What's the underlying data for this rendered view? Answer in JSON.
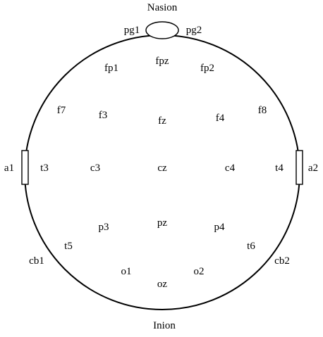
{
  "diagram": {
    "landmarks": {
      "nasion": "Nasion",
      "inion": "Inion"
    },
    "electrodes": {
      "pg1": "pg1",
      "pg2": "pg2",
      "fpz": "fpz",
      "fp1": "fp1",
      "fp2": "fp2",
      "f7": "f7",
      "f8": "f8",
      "f3": "f3",
      "fz": "fz",
      "f4": "f4",
      "a1": "a1",
      "a2": "a2",
      "t3": "t3",
      "c3": "c3",
      "cz": "cz",
      "c4": "c4",
      "t4": "t4",
      "p3": "p3",
      "pz": "pz",
      "p4": "p4",
      "t5": "t5",
      "t6": "t6",
      "cb1": "cb1",
      "cb2": "cb2",
      "o1": "o1",
      "o2": "o2",
      "oz": "oz"
    },
    "colors": {
      "stroke": "#000000",
      "background": "#ffffff"
    }
  }
}
